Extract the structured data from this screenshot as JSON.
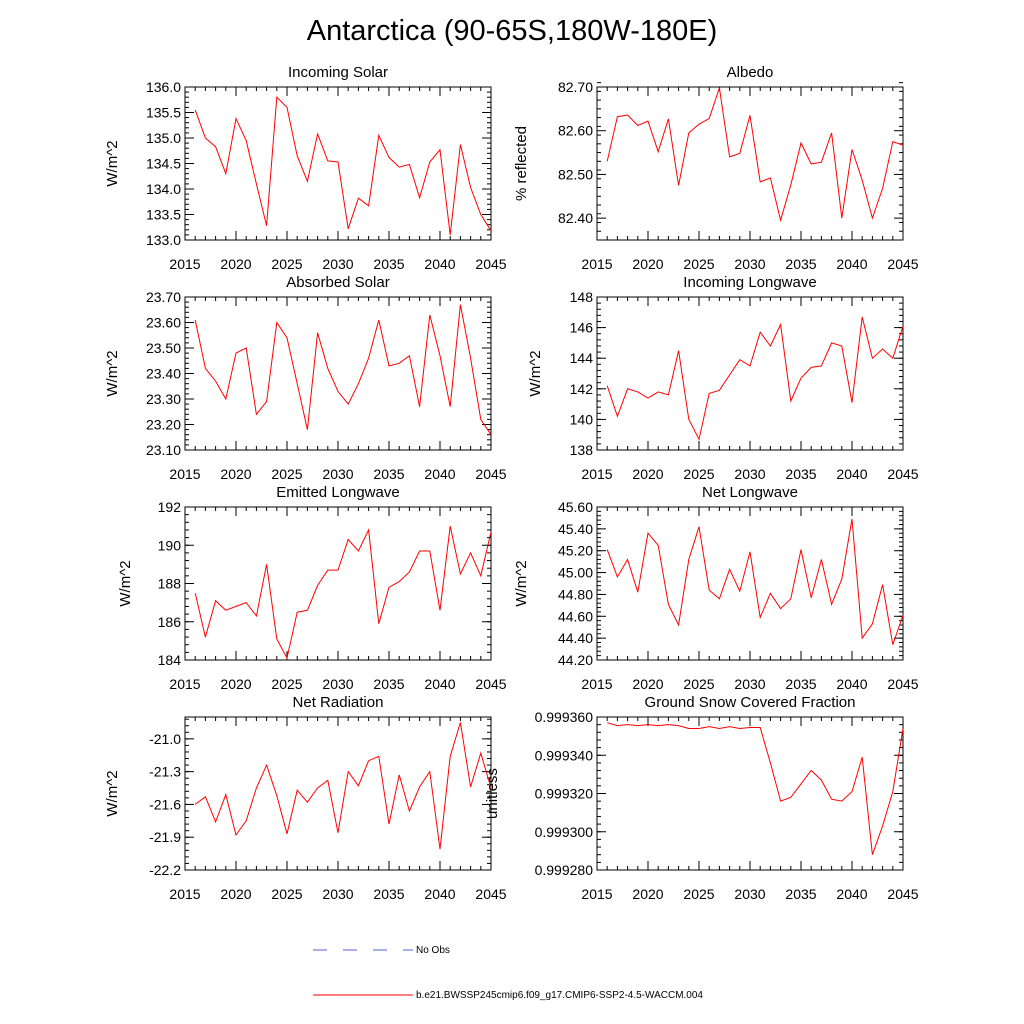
{
  "title": "Antarctica (90-65S,180W-180E)",
  "chart_data": [
    {
      "type": "line",
      "title": "Incoming Solar",
      "ylabel": "W/m^2",
      "ylim": [
        133.0,
        136.0
      ],
      "yticks": [
        133.0,
        133.5,
        134.0,
        134.5,
        135.0,
        135.5,
        136.0
      ],
      "ytick_labels": [
        "133.0",
        "133.5",
        "134.0",
        "134.5",
        "135.0",
        "135.5",
        "136.0"
      ],
      "y_minor_step": 0.1,
      "xlim": [
        2015,
        2045
      ],
      "xticks": [
        2015,
        2020,
        2025,
        2030,
        2035,
        2040,
        2045
      ],
      "xtick_labels": [
        "2015",
        "2020",
        "2025",
        "2030",
        "2035",
        "2040",
        "2045"
      ],
      "x": [
        2016,
        2017,
        2018,
        2019,
        2020,
        2021,
        2022,
        2023,
        2024,
        2025,
        2026,
        2027,
        2028,
        2029,
        2030,
        2031,
        2032,
        2033,
        2034,
        2035,
        2036,
        2037,
        2038,
        2039,
        2040,
        2041,
        2042,
        2043,
        2044,
        2045
      ],
      "y": [
        135.55,
        135.0,
        134.83,
        134.3,
        135.38,
        134.95,
        134.1,
        133.28,
        135.8,
        135.6,
        134.65,
        134.15,
        135.08,
        134.55,
        134.53,
        133.22,
        133.82,
        133.67,
        135.05,
        134.62,
        134.43,
        134.48,
        133.83,
        134.53,
        134.77,
        133.1,
        134.87,
        134.03,
        133.5,
        133.18
      ]
    },
    {
      "type": "line",
      "title": "Albedo",
      "ylabel": "% reflected",
      "ylim": [
        82.35,
        82.7
      ],
      "yticks": [
        82.4,
        82.5,
        82.6,
        82.7
      ],
      "ytick_labels": [
        "82.40",
        "82.50",
        "82.60",
        "82.70"
      ],
      "y_minor_step": 0.02,
      "xlim": [
        2015,
        2045
      ],
      "xticks": [
        2015,
        2020,
        2025,
        2030,
        2035,
        2040,
        2045
      ],
      "xtick_labels": [
        "2015",
        "2020",
        "2025",
        "2030",
        "2035",
        "2040",
        "2045"
      ],
      "x": [
        2016,
        2017,
        2018,
        2019,
        2020,
        2021,
        2022,
        2023,
        2024,
        2025,
        2026,
        2027,
        2028,
        2029,
        2030,
        2031,
        2032,
        2033,
        2034,
        2035,
        2036,
        2037,
        2038,
        2039,
        2040,
        2041,
        2042,
        2043,
        2044,
        2045
      ],
      "y": [
        82.53,
        82.632,
        82.636,
        82.612,
        82.622,
        82.552,
        82.627,
        82.475,
        82.595,
        82.615,
        82.628,
        82.698,
        82.54,
        82.548,
        82.635,
        82.483,
        82.492,
        82.395,
        82.476,
        82.572,
        82.524,
        82.528,
        82.595,
        82.4,
        82.557,
        82.487,
        82.4,
        82.468,
        82.575,
        82.567
      ]
    },
    {
      "type": "line",
      "title": "Absorbed Solar",
      "ylabel": "W/m^2",
      "ylim": [
        23.1,
        23.7
      ],
      "yticks": [
        23.1,
        23.2,
        23.3,
        23.4,
        23.5,
        23.6,
        23.7
      ],
      "ytick_labels": [
        "23.10",
        "23.20",
        "23.30",
        "23.40",
        "23.50",
        "23.60",
        "23.70"
      ],
      "y_minor_step": 0.02,
      "xlim": [
        2015,
        2045
      ],
      "xticks": [
        2015,
        2020,
        2025,
        2030,
        2035,
        2040,
        2045
      ],
      "xtick_labels": [
        "2015",
        "2020",
        "2025",
        "2030",
        "2035",
        "2040",
        "2045"
      ],
      "x": [
        2016,
        2017,
        2018,
        2019,
        2020,
        2021,
        2022,
        2023,
        2024,
        2025,
        2026,
        2027,
        2028,
        2029,
        2030,
        2031,
        2032,
        2033,
        2034,
        2035,
        2036,
        2037,
        2038,
        2039,
        2040,
        2041,
        2042,
        2043,
        2044,
        2045
      ],
      "y": [
        23.61,
        23.42,
        23.37,
        23.3,
        23.48,
        23.5,
        23.24,
        23.29,
        23.6,
        23.54,
        23.36,
        23.18,
        23.56,
        23.42,
        23.33,
        23.28,
        23.36,
        23.46,
        23.61,
        23.43,
        23.44,
        23.47,
        23.27,
        23.63,
        23.47,
        23.27,
        23.67,
        23.46,
        23.22,
        23.16
      ]
    },
    {
      "type": "line",
      "title": "Incoming Longwave",
      "ylabel": "W/m^2",
      "ylim": [
        138,
        148
      ],
      "yticks": [
        138,
        140,
        142,
        144,
        146,
        148
      ],
      "ytick_labels": [
        "138",
        "140",
        "142",
        "144",
        "146",
        "148"
      ],
      "y_minor_step": 0.4,
      "xlim": [
        2015,
        2045
      ],
      "xticks": [
        2015,
        2020,
        2025,
        2030,
        2035,
        2040,
        2045
      ],
      "xtick_labels": [
        "2015",
        "2020",
        "2025",
        "2030",
        "2035",
        "2040",
        "2045"
      ],
      "x": [
        2016,
        2017,
        2018,
        2019,
        2020,
        2021,
        2022,
        2023,
        2024,
        2025,
        2026,
        2027,
        2028,
        2029,
        2030,
        2031,
        2032,
        2033,
        2034,
        2035,
        2036,
        2037,
        2038,
        2039,
        2040,
        2041,
        2042,
        2043,
        2044,
        2045
      ],
      "y": [
        142.2,
        140.2,
        142.0,
        141.8,
        141.4,
        141.8,
        141.6,
        144.5,
        140.0,
        138.7,
        141.7,
        141.9,
        142.9,
        143.9,
        143.5,
        145.7,
        144.8,
        146.2,
        141.2,
        142.7,
        143.4,
        143.5,
        145.0,
        144.8,
        141.1,
        146.7,
        144.0,
        144.6,
        144.0,
        146.1
      ]
    },
    {
      "type": "line",
      "title": "Emitted Longwave",
      "ylabel": "W/m^2",
      "ylim": [
        184,
        192
      ],
      "yticks": [
        184,
        186,
        188,
        190,
        192
      ],
      "ytick_labels": [
        "184",
        "186",
        "188",
        "190",
        "192"
      ],
      "y_minor_step": 0.4,
      "xlim": [
        2015,
        2045
      ],
      "xticks": [
        2015,
        2020,
        2025,
        2030,
        2035,
        2040,
        2045
      ],
      "xtick_labels": [
        "2015",
        "2020",
        "2025",
        "2030",
        "2035",
        "2040",
        "2045"
      ],
      "x": [
        2016,
        2017,
        2018,
        2019,
        2020,
        2021,
        2022,
        2023,
        2024,
        2025,
        2026,
        2027,
        2028,
        2029,
        2030,
        2031,
        2032,
        2033,
        2034,
        2035,
        2036,
        2037,
        2038,
        2039,
        2040,
        2041,
        2042,
        2043,
        2044,
        2045
      ],
      "y": [
        187.5,
        185.2,
        187.1,
        186.6,
        186.8,
        187.0,
        186.3,
        189.0,
        185.1,
        184.1,
        186.5,
        186.6,
        187.9,
        188.7,
        188.7,
        190.3,
        189.7,
        190.8,
        185.9,
        187.8,
        188.1,
        188.6,
        189.7,
        189.7,
        186.6,
        191.0,
        188.5,
        189.6,
        188.4,
        190.7
      ]
    },
    {
      "type": "line",
      "title": "Net Longwave",
      "ylabel": "W/m^2",
      "ylim": [
        44.2,
        45.6
      ],
      "yticks": [
        44.2,
        44.4,
        44.6,
        44.8,
        45.0,
        45.2,
        45.4,
        45.6
      ],
      "ytick_labels": [
        "44.20",
        "44.40",
        "44.60",
        "44.80",
        "45.00",
        "45.20",
        "45.40",
        "45.60"
      ],
      "y_minor_step": 0.04,
      "xlim": [
        2015,
        2045
      ],
      "xticks": [
        2015,
        2020,
        2025,
        2030,
        2035,
        2040,
        2045
      ],
      "xtick_labels": [
        "2015",
        "2020",
        "2025",
        "2030",
        "2035",
        "2040",
        "2045"
      ],
      "x": [
        2016,
        2017,
        2018,
        2019,
        2020,
        2021,
        2022,
        2023,
        2024,
        2025,
        2026,
        2027,
        2028,
        2029,
        2030,
        2031,
        2032,
        2033,
        2034,
        2035,
        2036,
        2037,
        2038,
        2039,
        2040,
        2041,
        2042,
        2043,
        2044,
        2045
      ],
      "y": [
        45.21,
        44.96,
        45.12,
        44.82,
        45.36,
        45.25,
        44.71,
        44.52,
        45.12,
        45.42,
        44.84,
        44.76,
        45.03,
        44.83,
        45.19,
        44.59,
        44.81,
        44.67,
        44.76,
        45.21,
        44.77,
        45.12,
        44.71,
        44.94,
        45.49,
        44.4,
        44.53,
        44.89,
        44.34,
        44.61
      ]
    },
    {
      "type": "line",
      "title": "Net Radiation",
      "ylabel": "W/m^2",
      "ylim": [
        -22.2,
        -20.8
      ],
      "yticks": [
        -22.2,
        -21.9,
        -21.6,
        -21.3,
        -21.0
      ],
      "ytick_labels": [
        "-22.2",
        "-21.9",
        "-21.6",
        "-21.3",
        "-21.0"
      ],
      "y_minor_step": 0.06,
      "xlim": [
        2015,
        2045
      ],
      "xticks": [
        2015,
        2020,
        2025,
        2030,
        2035,
        2040,
        2045
      ],
      "xtick_labels": [
        "2015",
        "2020",
        "2025",
        "2030",
        "2035",
        "2040",
        "2045"
      ],
      "x": [
        2016,
        2017,
        2018,
        2019,
        2020,
        2021,
        2022,
        2023,
        2024,
        2025,
        2026,
        2027,
        2028,
        2029,
        2030,
        2031,
        2032,
        2033,
        2034,
        2035,
        2036,
        2037,
        2038,
        2039,
        2040,
        2041,
        2042,
        2043,
        2044,
        2045
      ],
      "y": [
        -21.6,
        -21.53,
        -21.76,
        -21.51,
        -21.88,
        -21.75,
        -21.45,
        -21.24,
        -21.52,
        -21.87,
        -21.47,
        -21.58,
        -21.45,
        -21.38,
        -21.86,
        -21.3,
        -21.43,
        -21.2,
        -21.16,
        -21.78,
        -21.33,
        -21.66,
        -21.44,
        -21.3,
        -22.01,
        -21.16,
        -20.85,
        -21.44,
        -21.13,
        -21.45
      ]
    },
    {
      "type": "line",
      "title": "Ground Snow Covered Fraction",
      "ylabel": "unitless",
      "ylim": [
        0.99928,
        0.99936
      ],
      "yticks": [
        0.99928,
        0.9993,
        0.99932,
        0.99934,
        0.99936
      ],
      "ytick_labels": [
        "0.999280",
        "0.999300",
        "0.999320",
        "0.999340",
        "0.999360"
      ],
      "y_minor_step": 4e-06,
      "xlim": [
        2015,
        2045
      ],
      "xticks": [
        2015,
        2020,
        2025,
        2030,
        2035,
        2040,
        2045
      ],
      "xtick_labels": [
        "2015",
        "2020",
        "2025",
        "2030",
        "2035",
        "2040",
        "2045"
      ],
      "x": [
        2016,
        2017,
        2018,
        2019,
        2020,
        2021,
        2022,
        2023,
        2024,
        2025,
        2026,
        2027,
        2028,
        2029,
        2030,
        2031,
        2032,
        2033,
        2034,
        2035,
        2036,
        2037,
        2038,
        2039,
        2040,
        2041,
        2042,
        2043,
        2044,
        2045
      ],
      "y": [
        0.999357,
        0.9993555,
        0.999356,
        0.9993555,
        0.999356,
        0.9993555,
        0.999356,
        0.9993555,
        0.999354,
        0.999354,
        0.999355,
        0.999354,
        0.999355,
        0.999354,
        0.9993545,
        0.9993545,
        0.999336,
        0.999316,
        0.999318,
        0.999325,
        0.999332,
        0.999327,
        0.999317,
        0.999316,
        0.999321,
        0.999339,
        0.999288,
        0.999303,
        0.999321,
        0.999354
      ]
    }
  ],
  "legend": {
    "entries": [
      {
        "label": "No Obs",
        "color": "#5560d8",
        "dash": "dashed"
      },
      {
        "label": "b.e21.BWSSP245cmip6.f09_g17.CMIP6-SSP2-4.5-WACCM.004",
        "color": "#ff0000",
        "dash": "solid"
      }
    ]
  }
}
